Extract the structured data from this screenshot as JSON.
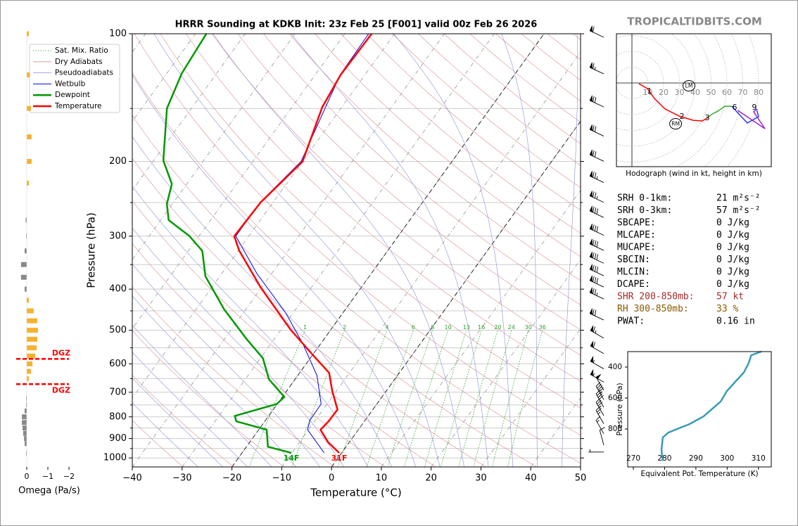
{
  "site": "TROPICALTIDBITS.COM",
  "stats": [
    {
      "label": "SRH 0-1km:",
      "value": "21 m²s⁻²"
    },
    {
      "label": "SRH 0-3km:",
      "value": "57 m²s⁻²"
    },
    {
      "label": "SBCAPE:",
      "value": "0 J/kg"
    },
    {
      "label": "MLCAPE:",
      "value": "0 J/kg"
    },
    {
      "label": "MUCAPE:",
      "value": "0 J/kg"
    },
    {
      "label": "SBCIN:",
      "value": "0 J/kg"
    },
    {
      "label": "MLCIN:",
      "value": "0 J/kg"
    },
    {
      "label": "DCAPE:",
      "value": "0 J/kg"
    },
    {
      "label": "SHR 200-850mb:",
      "value": "57 kt",
      "color": "#a52a2a"
    },
    {
      "label": "RH 300-850mb:",
      "value": "33 %",
      "color": "#8b5a00"
    },
    {
      "label": "PWAT:",
      "value": "0.16 in"
    }
  ],
  "chart_data": [
    {
      "type": "skewt",
      "title": "HRRR Sounding at KDKB Init: 23z Feb 25 [F001] valid 00z Feb 26 2026",
      "xlabel": "Temperature (°C)",
      "ylabel": "Pressure (hPa)",
      "xlim": [
        -40,
        50
      ],
      "ylim": [
        1050,
        100
      ],
      "log_y": true,
      "grid": true,
      "legend": "upper left",
      "xticks": [
        {
          "value": -40,
          "label": "−40"
        },
        {
          "value": -30,
          "label": "−30"
        },
        {
          "value": -20,
          "label": "−20"
        },
        {
          "value": -10,
          "label": "−10"
        },
        0,
        10,
        20,
        30,
        40,
        50
      ],
      "yticks": [
        100,
        200,
        300,
        400,
        500,
        600,
        700,
        800,
        900,
        1000
      ],
      "yticks_minor": [
        150,
        250,
        350,
        450,
        550,
        650,
        750,
        850,
        950
      ],
      "highlight_isotherms": [
        0,
        -20
      ],
      "reference_lines": [
        {
          "name": "Sat. Mix. Ratio",
          "color": "#2ca02c"
        },
        {
          "name": "Dry Adiabats",
          "color": "#d98c8c"
        },
        {
          "name": "Pseudoadiabats",
          "color": "#8c8cd9"
        }
      ],
      "mixing_ratio_labels": [
        1,
        2,
        4,
        6,
        8,
        10,
        13,
        16,
        20,
        24,
        30,
        36
      ],
      "series": [
        {
          "name": "Wetbulb",
          "color": "#0000ff",
          "pressure": [
            973,
            858,
            814,
            746,
            640,
            539,
            454,
            368,
            300,
            250,
            200,
            125,
            100
          ],
          "values": [
            -3.5,
            -10.2,
            -11.1,
            -11.2,
            -16.1,
            -23.5,
            -31.6,
            -42.9,
            -52.6,
            -52.6,
            -50.3,
            -55,
            -55.2
          ]
        },
        {
          "name": "Dewpoint",
          "color": "#009900",
          "pressure": [
            973,
            941,
            858,
            820,
            796,
            746,
            718,
            653,
            582,
            525,
            446,
            373,
            325,
            300,
            275,
            252,
            226,
            199,
            150,
            124,
            100
          ],
          "values": [
            -10.1,
            -15.7,
            -18.4,
            -25.7,
            -26.8,
            -20.1,
            -19.6,
            -25.2,
            -29.5,
            -35.5,
            -44.4,
            -52.9,
            -57.2,
            -61.9,
            -68.4,
            -71.1,
            -73,
            -78.1,
            -84.9,
            -87,
            -87.8
          ]
        },
        {
          "name": "Temperature",
          "color": "#ff0000",
          "pressure": [
            973,
            919,
            858,
            820,
            769,
            696,
            630,
            577,
            500,
            397,
            324,
            300,
            250,
            200,
            149,
            125,
            100
          ],
          "values": [
            -0.5,
            -4.2,
            -7.6,
            -7.2,
            -7.1,
            -10.8,
            -14.1,
            -19.4,
            -27.9,
            -40.1,
            -49.9,
            -52.9,
            -52.5,
            -50,
            -53.9,
            -54.9,
            -54.6
          ]
        }
      ],
      "annotations": [
        {
          "text": "14F",
          "series": 1
        },
        {
          "text": "31F",
          "series": 2
        }
      ],
      "wind": {
        "pressures": [
          100,
          122,
          146,
          171,
          196,
          220,
          245,
          266,
          293,
          318,
          341,
          365,
          388,
          414,
          464,
          512,
          557,
          605,
          650,
          680,
          715,
          745,
          780,
          815,
          860,
          915,
          950
        ],
        "speeds": [
          60,
          65,
          70,
          70,
          70,
          75,
          75,
          80,
          80,
          80,
          80,
          80,
          80,
          75,
          70,
          65,
          60,
          55,
          55,
          50,
          45,
          40,
          35,
          25,
          15,
          10,
          5
        ],
        "directions": [
          295,
          295,
          295,
          295,
          295,
          295,
          295,
          295,
          295,
          295,
          295,
          295,
          295,
          295,
          295,
          300,
          300,
          300,
          300,
          330,
          330,
          330,
          330,
          330,
          330,
          345,
          270
        ]
      }
    },
    {
      "type": "omega",
      "xlabel": "Omega (Pa/s)",
      "xlim": [
        0.5,
        -2
      ],
      "ylim": [
        1050,
        100
      ],
      "log_y": true,
      "xticks": [
        0,
        {
          "value": -1,
          "label": "−1"
        },
        {
          "value": -2,
          "label": "−2"
        }
      ],
      "negative_color": "#f7b12e",
      "positive_color": "#888888",
      "pressures": [
        100,
        125,
        150,
        175,
        200,
        225,
        275,
        300,
        325,
        350,
        375,
        400,
        425,
        450,
        475,
        500,
        525,
        550,
        575,
        600,
        625,
        650,
        725,
        750,
        775,
        800,
        825,
        850,
        875,
        900,
        925,
        975
      ],
      "values": [
        -0.1,
        -0.15,
        -0.2,
        -0.23,
        -0.23,
        -0.1,
        0.05,
        0.03,
        0.1,
        0.27,
        0.27,
        0.1,
        -0.1,
        -0.33,
        -0.5,
        -0.53,
        -0.5,
        -0.47,
        -0.4,
        -0.27,
        -0.2,
        -0.1,
        0.03,
        0.03,
        0.1,
        0.23,
        0.23,
        0.2,
        0.17,
        0.13,
        0.1,
        0.03
      ],
      "dgz": {
        "color": "#ff0000",
        "levels": [
          {
            "label": "DGZ",
            "pressure": 584
          },
          {
            "label": "DGZ",
            "pressure": 670
          }
        ]
      }
    },
    {
      "type": "hodograph",
      "caption": "Hodograph (wind in kt, height in km)",
      "rings": [
        10,
        20,
        30,
        40,
        50,
        60,
        70,
        80
      ],
      "segments": [
        {
          "color": "#ff0000",
          "u": [
            4.4,
            9.8,
            14.2,
            20.9,
            29.8,
            38.7,
            44.4,
            47.6
          ],
          "v": [
            -0.4,
            -3.6,
            -9.8,
            -16.4,
            -20.9,
            -23.6,
            -24,
            -22.2
          ]
        },
        {
          "color": "#33aa33",
          "u": [
            47.6,
            50.7,
            54.2,
            58.7,
            63.1
          ],
          "v": [
            -22.2,
            -19.6,
            -17.8,
            -14.7,
            -14.7
          ]
        },
        {
          "color": "#1f3cff",
          "u": [
            63.1,
            66.7,
            72.9,
            80,
            78.7
          ],
          "v": [
            -14.7,
            -18.7,
            -25.3,
            -21.3,
            -16.4
          ]
        },
        {
          "color": "#a020d0",
          "u": [
            78.7,
            76.9,
            84,
            66.7
          ],
          "v": [
            -16.4,
            -18.2,
            -28.9,
            -17.3
          ]
        }
      ],
      "height_labels": [
        {
          "label": "1",
          "u": 11.1,
          "v": -5.3
        },
        {
          "label": "2",
          "u": 31.6,
          "v": -21.3
        },
        {
          "label": "3",
          "u": 47.6,
          "v": -22.2
        },
        {
          "label": "6",
          "u": 64.9,
          "v": -15.6
        },
        {
          "label": "9",
          "u": 77.3,
          "v": -15.6
        }
      ],
      "storm_motion": [
        {
          "label": "LM",
          "u": 36,
          "v": -1.8
        },
        {
          "label": "RM",
          "u": 27.6,
          "v": -25.8
        }
      ]
    },
    {
      "type": "line",
      "xlabel": "Equivalent Pot. Temperature (K)",
      "ylabel": "Pressure (hPa)",
      "color": "#3a9bb5",
      "xlim": [
        268.2,
        314.1
      ],
      "ylim": [
        1045,
        300
      ],
      "xticks": [
        270,
        280,
        290,
        300,
        310
      ],
      "yticks": [
        400,
        600,
        800
      ],
      "x": [
        310.9,
        307.7,
        306.8,
        305.3,
        302.6,
        299.9,
        297.9,
        292.5,
        288,
        281.2,
        279.4,
        279,
        279.4
      ],
      "pressure": [
        300,
        323,
        377,
        436,
        495,
        555,
        623,
        718,
        768,
        823,
        855,
        936,
        1005
      ]
    }
  ]
}
